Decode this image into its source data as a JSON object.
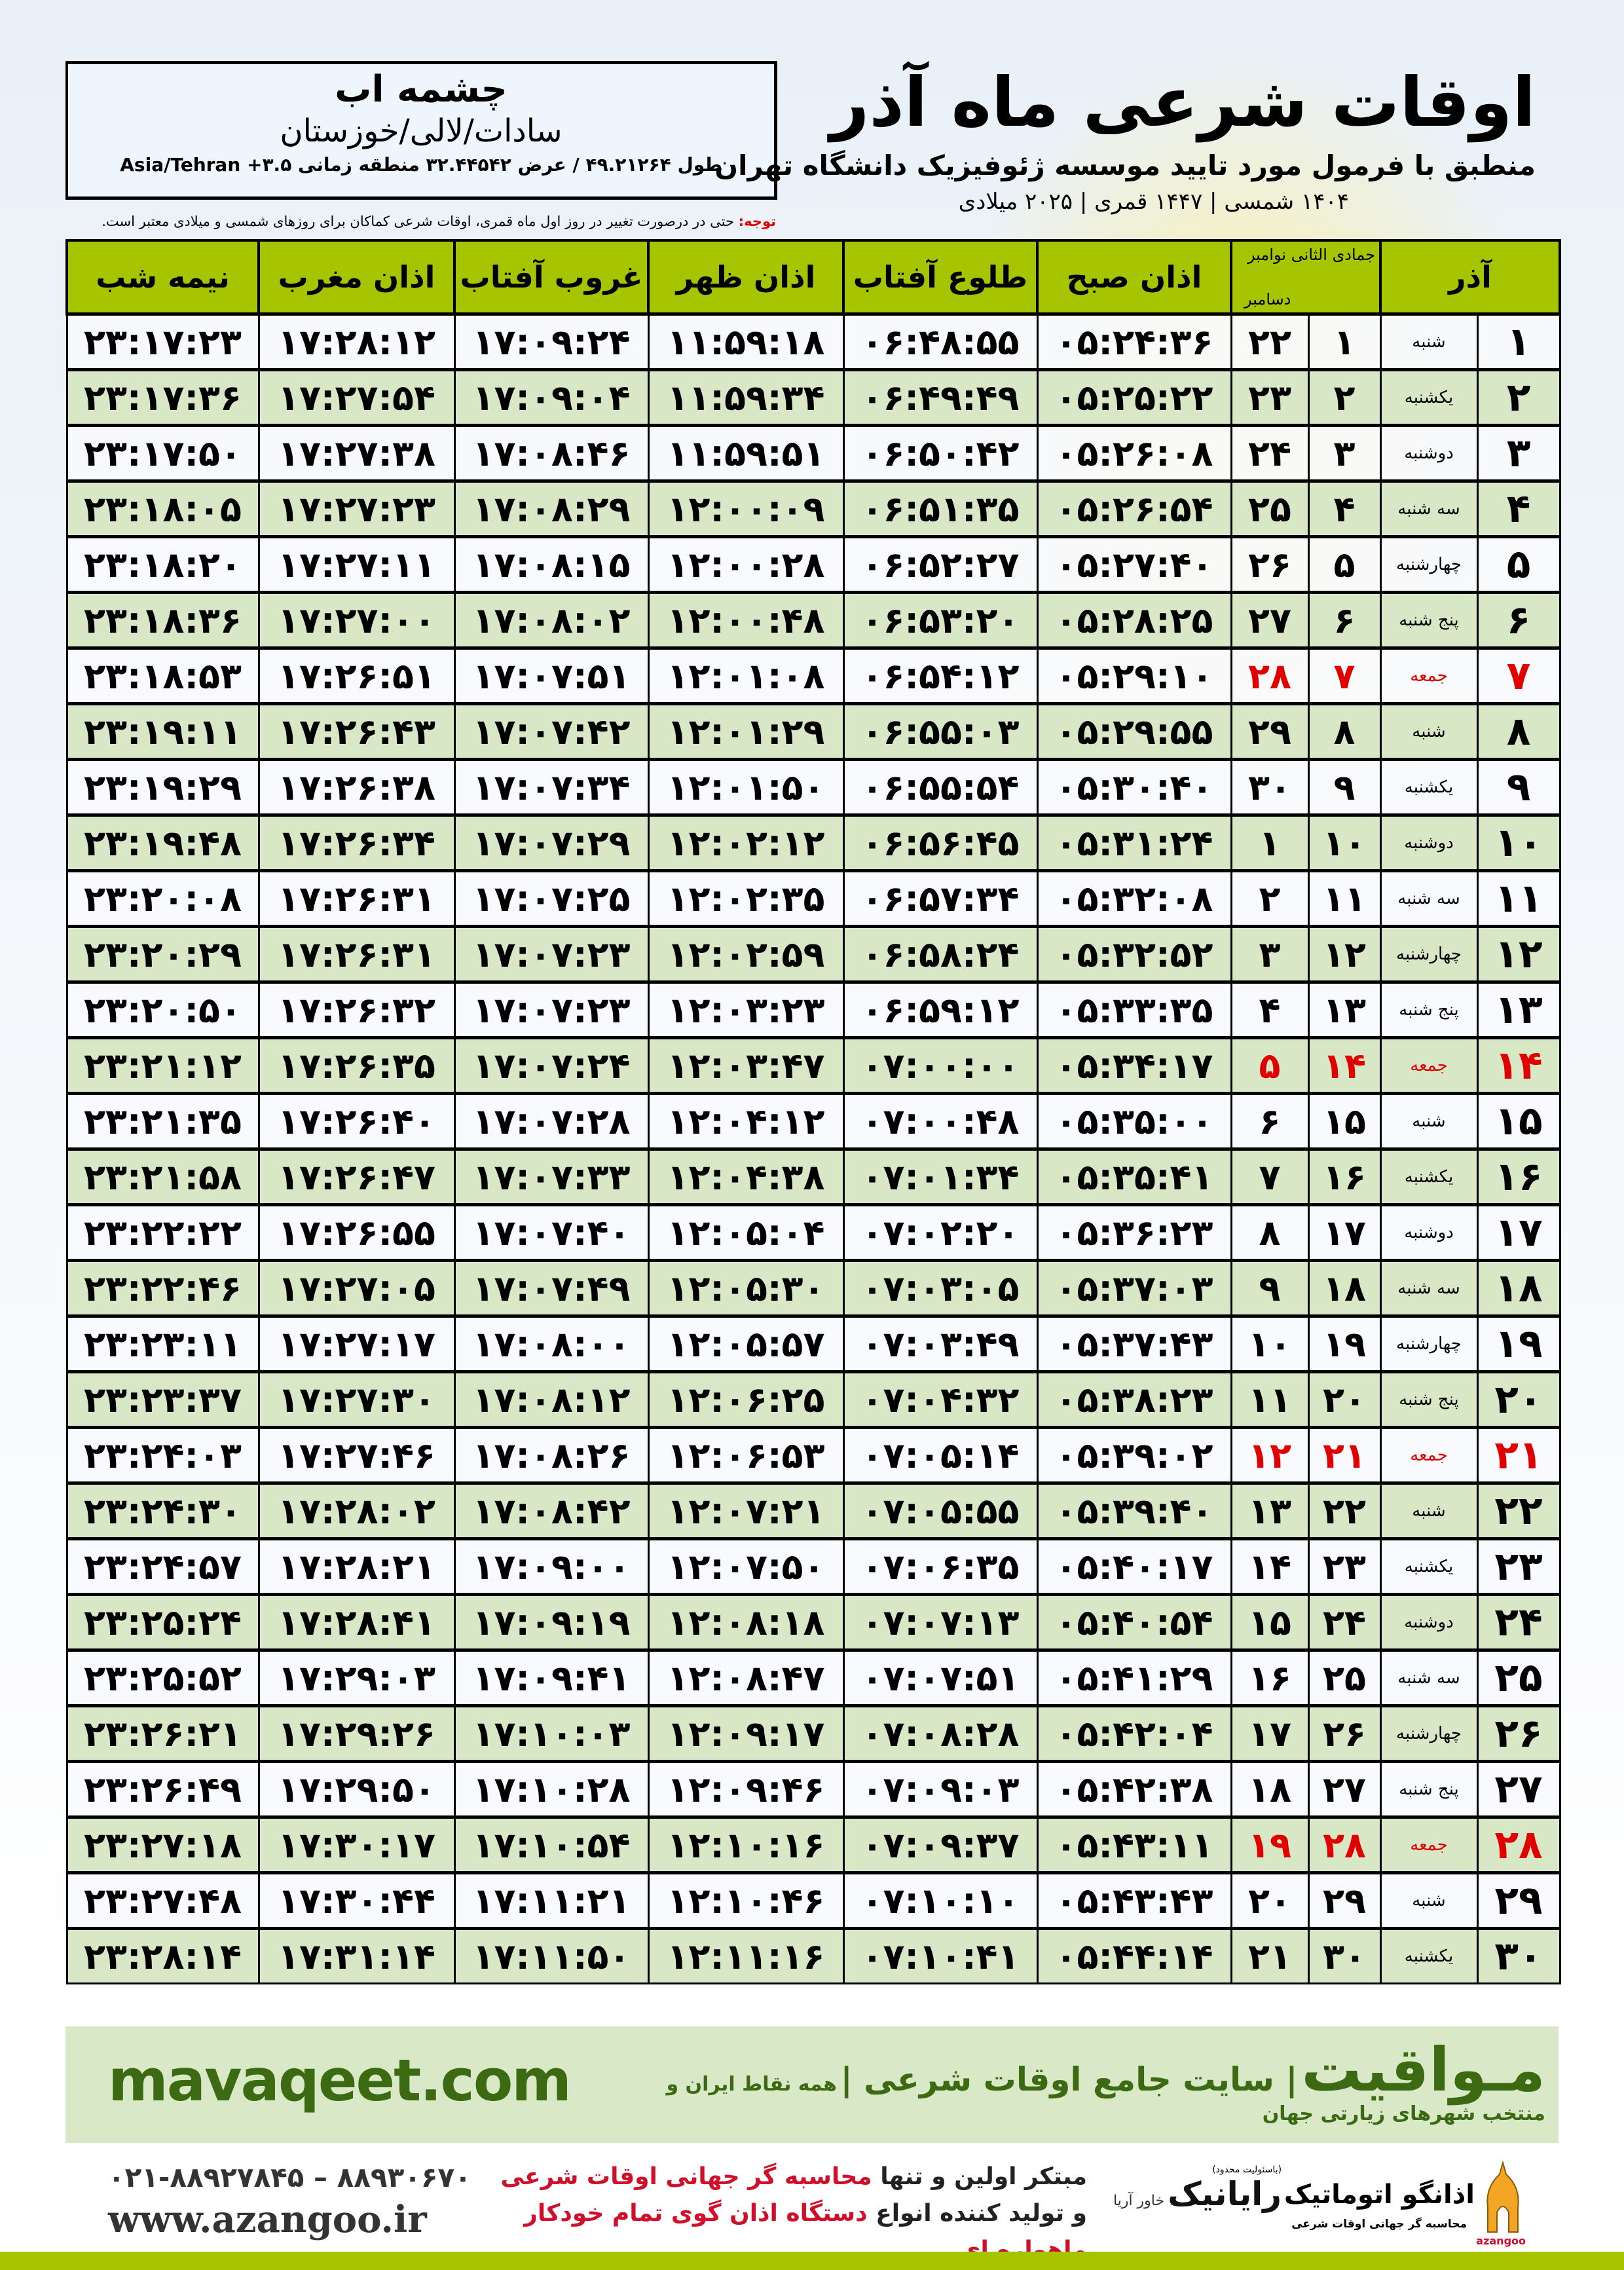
{
  "header": {
    "title": "اوقات شرعی ماه آذر",
    "subtitle": "منطبق با فرمول مورد تایید موسسه ژئوفیزیک دانشگاه تهران",
    "dates": "۱۴۰۴ شمسی | ۱۴۴۷ قمری | ۲۰۲۵ میلادی"
  },
  "location": {
    "city": "چشمه اب",
    "region": "سادات/لالی/خوزستان",
    "coords": "طول ۴۹.۲۱۲۶۴ / عرض ۳۲.۴۴۵۴۲ منطقه زمانی Asia/Tehran +۳.۵"
  },
  "note": {
    "label": "توجه:",
    "text": " حتی در درصورت تغییر در روز اول ماه قمری، اوقات شرعی کماکان برای روزهای شمسی و میلادی معتبر است."
  },
  "table": {
    "columns": {
      "azar": "آذر",
      "hijri_top": "جمادی الثانی نوامبر",
      "hijri_bottom": "دسامبر",
      "sobh": "اذان صبح",
      "tolu": "طلوع آفتاب",
      "zohr": "اذان ظهر",
      "ghorub": "غروب آفتاب",
      "maghreb": "اذان مغرب",
      "nime": "نیمه شب"
    },
    "holiday_weekday": "جمعه",
    "holiday_color": "#e00000",
    "header_color": "#a7c400",
    "rows": [
      [
        "۱",
        "شنبه",
        "۱",
        "۲۲",
        "۰۵:۲۴:۳۶",
        "۰۶:۴۸:۵۵",
        "۱۱:۵۹:۱۸",
        "۱۷:۰۹:۲۴",
        "۱۷:۲۸:۱۲",
        "۲۳:۱۷:۲۳"
      ],
      [
        "۲",
        "یکشنبه",
        "۲",
        "۲۳",
        "۰۵:۲۵:۲۲",
        "۰۶:۴۹:۴۹",
        "۱۱:۵۹:۳۴",
        "۱۷:۰۹:۰۴",
        "۱۷:۲۷:۵۴",
        "۲۳:۱۷:۳۶"
      ],
      [
        "۳",
        "دوشنبه",
        "۳",
        "۲۴",
        "۰۵:۲۶:۰۸",
        "۰۶:۵۰:۴۲",
        "۱۱:۵۹:۵۱",
        "۱۷:۰۸:۴۶",
        "۱۷:۲۷:۳۸",
        "۲۳:۱۷:۵۰"
      ],
      [
        "۴",
        "سه شنبه",
        "۴",
        "۲۵",
        "۰۵:۲۶:۵۴",
        "۰۶:۵۱:۳۵",
        "۱۲:۰۰:۰۹",
        "۱۷:۰۸:۲۹",
        "۱۷:۲۷:۲۳",
        "۲۳:۱۸:۰۵"
      ],
      [
        "۵",
        "چهارشنبه",
        "۵",
        "۲۶",
        "۰۵:۲۷:۴۰",
        "۰۶:۵۲:۲۷",
        "۱۲:۰۰:۲۸",
        "۱۷:۰۸:۱۵",
        "۱۷:۲۷:۱۱",
        "۲۳:۱۸:۲۰"
      ],
      [
        "۶",
        "پنج شنبه",
        "۶",
        "۲۷",
        "۰۵:۲۸:۲۵",
        "۰۶:۵۳:۲۰",
        "۱۲:۰۰:۴۸",
        "۱۷:۰۸:۰۲",
        "۱۷:۲۷:۰۰",
        "۲۳:۱۸:۳۶"
      ],
      [
        "۷",
        "جمعه",
        "۷",
        "۲۸",
        "۰۵:۲۹:۱۰",
        "۰۶:۵۴:۱۲",
        "۱۲:۰۱:۰۸",
        "۱۷:۰۷:۵۱",
        "۱۷:۲۶:۵۱",
        "۲۳:۱۸:۵۳"
      ],
      [
        "۸",
        "شنبه",
        "۸",
        "۲۹",
        "۰۵:۲۹:۵۵",
        "۰۶:۵۵:۰۳",
        "۱۲:۰۱:۲۹",
        "۱۷:۰۷:۴۲",
        "۱۷:۲۶:۴۳",
        "۲۳:۱۹:۱۱"
      ],
      [
        "۹",
        "یکشنبه",
        "۹",
        "۳۰",
        "۰۵:۳۰:۴۰",
        "۰۶:۵۵:۵۴",
        "۱۲:۰۱:۵۰",
        "۱۷:۰۷:۳۴",
        "۱۷:۲۶:۳۸",
        "۲۳:۱۹:۲۹"
      ],
      [
        "۱۰",
        "دوشنبه",
        "۱۰",
        "۱",
        "۰۵:۳۱:۲۴",
        "۰۶:۵۶:۴۵",
        "۱۲:۰۲:۱۲",
        "۱۷:۰۷:۲۹",
        "۱۷:۲۶:۳۴",
        "۲۳:۱۹:۴۸"
      ],
      [
        "۱۱",
        "سه شنبه",
        "۱۱",
        "۲",
        "۰۵:۳۲:۰۸",
        "۰۶:۵۷:۳۴",
        "۱۲:۰۲:۳۵",
        "۱۷:۰۷:۲۵",
        "۱۷:۲۶:۳۱",
        "۲۳:۲۰:۰۸"
      ],
      [
        "۱۲",
        "چهارشنبه",
        "۱۲",
        "۳",
        "۰۵:۳۲:۵۲",
        "۰۶:۵۸:۲۴",
        "۱۲:۰۲:۵۹",
        "۱۷:۰۷:۲۳",
        "۱۷:۲۶:۳۱",
        "۲۳:۲۰:۲۹"
      ],
      [
        "۱۳",
        "پنج شنبه",
        "۱۳",
        "۴",
        "۰۵:۳۳:۳۵",
        "۰۶:۵۹:۱۲",
        "۱۲:۰۳:۲۳",
        "۱۷:۰۷:۲۳",
        "۱۷:۲۶:۳۲",
        "۲۳:۲۰:۵۰"
      ],
      [
        "۱۴",
        "جمعه",
        "۱۴",
        "۵",
        "۰۵:۳۴:۱۷",
        "۰۷:۰۰:۰۰",
        "۱۲:۰۳:۴۷",
        "۱۷:۰۷:۲۴",
        "۱۷:۲۶:۳۵",
        "۲۳:۲۱:۱۲"
      ],
      [
        "۱۵",
        "شنبه",
        "۱۵",
        "۶",
        "۰۵:۳۵:۰۰",
        "۰۷:۰۰:۴۸",
        "۱۲:۰۴:۱۲",
        "۱۷:۰۷:۲۸",
        "۱۷:۲۶:۴۰",
        "۲۳:۲۱:۳۵"
      ],
      [
        "۱۶",
        "یکشنبه",
        "۱۶",
        "۷",
        "۰۵:۳۵:۴۱",
        "۰۷:۰۱:۳۴",
        "۱۲:۰۴:۳۸",
        "۱۷:۰۷:۳۳",
        "۱۷:۲۶:۴۷",
        "۲۳:۲۱:۵۸"
      ],
      [
        "۱۷",
        "دوشنبه",
        "۱۷",
        "۸",
        "۰۵:۳۶:۲۳",
        "۰۷:۰۲:۲۰",
        "۱۲:۰۵:۰۴",
        "۱۷:۰۷:۴۰",
        "۱۷:۲۶:۵۵",
        "۲۳:۲۲:۲۲"
      ],
      [
        "۱۸",
        "سه شنبه",
        "۱۸",
        "۹",
        "۰۵:۳۷:۰۳",
        "۰۷:۰۳:۰۵",
        "۱۲:۰۵:۳۰",
        "۱۷:۰۷:۴۹",
        "۱۷:۲۷:۰۵",
        "۲۳:۲۲:۴۶"
      ],
      [
        "۱۹",
        "چهارشنبه",
        "۱۹",
        "۱۰",
        "۰۵:۳۷:۴۳",
        "۰۷:۰۳:۴۹",
        "۱۲:۰۵:۵۷",
        "۱۷:۰۸:۰۰",
        "۱۷:۲۷:۱۷",
        "۲۳:۲۳:۱۱"
      ],
      [
        "۲۰",
        "پنج شنبه",
        "۲۰",
        "۱۱",
        "۰۵:۳۸:۲۳",
        "۰۷:۰۴:۳۲",
        "۱۲:۰۶:۲۵",
        "۱۷:۰۸:۱۲",
        "۱۷:۲۷:۳۰",
        "۲۳:۲۳:۳۷"
      ],
      [
        "۲۱",
        "جمعه",
        "۲۱",
        "۱۲",
        "۰۵:۳۹:۰۲",
        "۰۷:۰۵:۱۴",
        "۱۲:۰۶:۵۳",
        "۱۷:۰۸:۲۶",
        "۱۷:۲۷:۴۶",
        "۲۳:۲۴:۰۳"
      ],
      [
        "۲۲",
        "شنبه",
        "۲۲",
        "۱۳",
        "۰۵:۳۹:۴۰",
        "۰۷:۰۵:۵۵",
        "۱۲:۰۷:۲۱",
        "۱۷:۰۸:۴۲",
        "۱۷:۲۸:۰۲",
        "۲۳:۲۴:۳۰"
      ],
      [
        "۲۳",
        "یکشنبه",
        "۲۳",
        "۱۴",
        "۰۵:۴۰:۱۷",
        "۰۷:۰۶:۳۵",
        "۱۲:۰۷:۵۰",
        "۱۷:۰۹:۰۰",
        "۱۷:۲۸:۲۱",
        "۲۳:۲۴:۵۷"
      ],
      [
        "۲۴",
        "دوشنبه",
        "۲۴",
        "۱۵",
        "۰۵:۴۰:۵۴",
        "۰۷:۰۷:۱۳",
        "۱۲:۰۸:۱۸",
        "۱۷:۰۹:۱۹",
        "۱۷:۲۸:۴۱",
        "۲۳:۲۵:۲۴"
      ],
      [
        "۲۵",
        "سه شنبه",
        "۲۵",
        "۱۶",
        "۰۵:۴۱:۲۹",
        "۰۷:۰۷:۵۱",
        "۱۲:۰۸:۴۷",
        "۱۷:۰۹:۴۱",
        "۱۷:۲۹:۰۳",
        "۲۳:۲۵:۵۲"
      ],
      [
        "۲۶",
        "چهارشنبه",
        "۲۶",
        "۱۷",
        "۰۵:۴۲:۰۴",
        "۰۷:۰۸:۲۸",
        "۱۲:۰۹:۱۷",
        "۱۷:۱۰:۰۳",
        "۱۷:۲۹:۲۶",
        "۲۳:۲۶:۲۱"
      ],
      [
        "۲۷",
        "پنج شنبه",
        "۲۷",
        "۱۸",
        "۰۵:۴۲:۳۸",
        "۰۷:۰۹:۰۳",
        "۱۲:۰۹:۴۶",
        "۱۷:۱۰:۲۸",
        "۱۷:۲۹:۵۰",
        "۲۳:۲۶:۴۹"
      ],
      [
        "۲۸",
        "جمعه",
        "۲۸",
        "۱۹",
        "۰۵:۴۳:۱۱",
        "۰۷:۰۹:۳۷",
        "۱۲:۱۰:۱۶",
        "۱۷:۱۰:۵۴",
        "۱۷:۳۰:۱۷",
        "۲۳:۲۷:۱۸"
      ],
      [
        "۲۹",
        "شنبه",
        "۲۹",
        "۲۰",
        "۰۵:۴۳:۴۳",
        "۰۷:۱۰:۱۰",
        "۱۲:۱۰:۴۶",
        "۱۷:۱۱:۲۱",
        "۱۷:۳۰:۴۴",
        "۲۳:۲۷:۴۸"
      ],
      [
        "۳۰",
        "یکشنبه",
        "۳۰",
        "۲۱",
        "۰۵:۴۴:۱۴",
        "۰۷:۱۰:۴۱",
        "۱۲:۱۱:۱۶",
        "۱۷:۱۱:۵۰",
        "۱۷:۳۱:۱۴",
        "۲۳:۲۸:۱۴"
      ]
    ]
  },
  "footer": {
    "site": "mavaqeet.com",
    "brand": "مـواقیت",
    "brand_tagline": "| سایت جامع اوقات شرعی |",
    "brand_sub": "همه نقاط ایران و منتخب شهرهای زیارتی جهان",
    "phones": "۰۲۱-۸۸۹۲۷۸۴۵ – ۸۸۹۳۰۶۷۰",
    "web": "www.azangoo.ir",
    "promo_line1_a": "مبتکر اولین و تنها ",
    "promo_line1_b": "محاسبه گر جهانی اوقات شرعی",
    "promo_line2_a": "و تولید کننده انواع ",
    "promo_line2_b": "دستگاه اذان گوی تمام خودکار ماهواره ای",
    "rayanik_name": "رایانیک",
    "rayanik_sub": "خاور آریا",
    "rayanik_note": "(باسئولیت محدود)",
    "azangoo_name": "اذانگو اتوماتیک",
    "azangoo_latin": "azangoo",
    "azangoo_sub": "محاسبه گر جهانی اوقات شرعی",
    "accent_color": "#3b6a12",
    "band_color": "#d9e8c6"
  }
}
